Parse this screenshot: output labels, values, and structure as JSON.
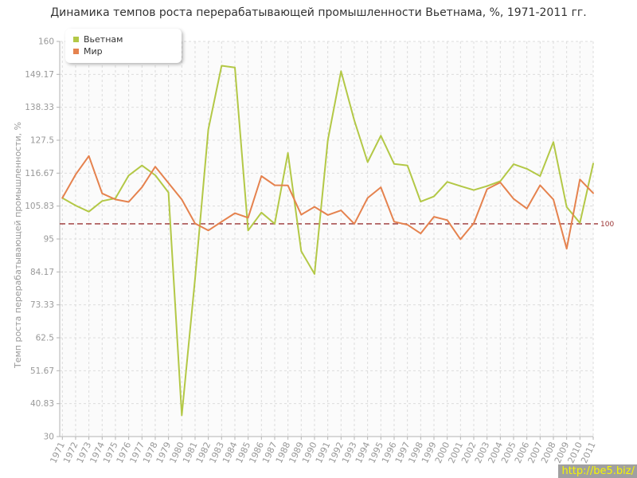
{
  "title": "Динамика темпов роста перерабатывающей промышленности Вьетнама, %, 1971-2011 гг.",
  "y_axis_title": "Темп роста перерабатывающей промышленности, %",
  "watermark": "http://be5.biz/",
  "legend": {
    "items": [
      {
        "label": "Вьетнам",
        "color": "#b3c846"
      },
      {
        "label": "Мир",
        "color": "#e5824e"
      }
    ]
  },
  "chart_data": {
    "type": "line",
    "title": "Динамика темпов роста перерабатывающей промышленности Вьетнама, %, 1971-2011 гг.",
    "xlabel": "",
    "ylabel": "Темп роста перерабатывающей промышленности, %",
    "ylim": [
      30,
      160
    ],
    "grid": true,
    "legend_position": "top-left",
    "x": [
      1971,
      1972,
      1973,
      1974,
      1975,
      1976,
      1977,
      1978,
      1979,
      1980,
      1981,
      1982,
      1983,
      1984,
      1985,
      1986,
      1987,
      1988,
      1989,
      1990,
      1991,
      1992,
      1993,
      1994,
      1995,
      1996,
      1997,
      1998,
      1999,
      2000,
      2001,
      2002,
      2003,
      2004,
      2005,
      2006,
      2007,
      2008,
      2009,
      2010,
      2011
    ],
    "y_ticks": [
      30,
      40.83,
      51.67,
      62.5,
      73.33,
      84.17,
      95,
      105.83,
      116.67,
      127.5,
      138.33,
      149.17,
      160
    ],
    "y_tick_labels": [
      "30",
      "40.83",
      "51.67",
      "62.5",
      "73.33",
      "84.17",
      "95",
      "105.83",
      "116.67",
      "127.5",
      "138.33",
      "149.17",
      "160"
    ],
    "reference_line": {
      "value": 100,
      "label": "100",
      "color": "#9b3434"
    },
    "series": [
      {
        "name": "Вьетнам",
        "color": "#b3c846",
        "values": [
          108.5,
          106,
          104,
          107.5,
          108.4,
          115.9,
          119.2,
          116,
          110.3,
          37,
          82,
          131,
          152,
          151.4,
          97.8,
          103.7,
          100,
          123.3,
          91,
          83.5,
          127.5,
          150.2,
          134,
          120.3,
          129,
          119.7,
          119.2,
          107.3,
          109,
          113.8,
          112.4,
          111.1,
          112.4,
          114,
          119.6,
          118.1,
          115.7,
          126.9,
          105.5,
          100.3,
          119.8
        ]
      },
      {
        "name": "Мир",
        "color": "#e5824e",
        "values": [
          108.5,
          116.2,
          122.3,
          110,
          108,
          107.2,
          112,
          118.8,
          113.4,
          108,
          100.1,
          97.8,
          100.7,
          103.5,
          102,
          115.7,
          112.7,
          112.6,
          103,
          105.6,
          102.9,
          104.4,
          100,
          108.5,
          112,
          100.7,
          99.7,
          96.8,
          102.3,
          101.2,
          94.9,
          100.2,
          111.4,
          113.6,
          108.2,
          105,
          112.7,
          108,
          91.8,
          114.6,
          110.1
        ]
      }
    ]
  }
}
